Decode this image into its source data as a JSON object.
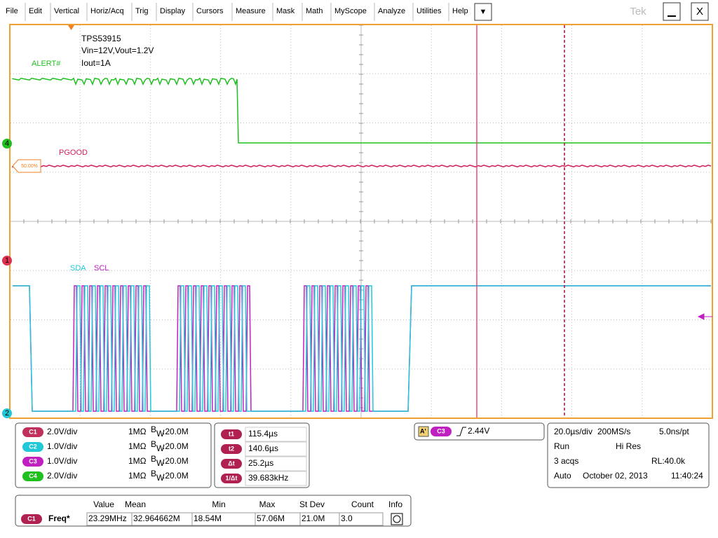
{
  "menu": {
    "items": [
      "File",
      "Edit",
      "Vertical",
      "Horiz/Acq",
      "Trig",
      "Display",
      "Cursors",
      "Measure",
      "Mask",
      "Math",
      "MyScope",
      "Analyze",
      "Utilities",
      "Help"
    ],
    "dropdown": "▼",
    "brand": "Tek",
    "close": "X"
  },
  "annotations": {
    "device": "TPS53915",
    "conditions": "Vin=12V,Vout=1.2V",
    "load": "Iout=1A",
    "alert": "ALERT#",
    "pgood": "PGOOD",
    "sda": "SDA",
    "scl": "SCL",
    "ref_level": "50.00%",
    "marker_4": "4",
    "marker_1": "1",
    "marker_2": "2"
  },
  "channels": [
    {
      "id": "C1",
      "scale": "2.0V/div",
      "impedance": "1MΩ",
      "bw_b": "B",
      "bw_w": "W",
      "bw_value": ":20.0M",
      "color": "#c0305a"
    },
    {
      "id": "C2",
      "scale": "1.0V/div",
      "impedance": "1MΩ",
      "bw_b": "B",
      "bw_w": "W",
      "bw_value": ":20.0M",
      "color": "#20c8d8"
    },
    {
      "id": "C3",
      "scale": "1.0V/div",
      "impedance": "1MΩ",
      "bw_b": "B",
      "bw_w": "W",
      "bw_value": ":20.0M",
      "color": "#c020c0"
    },
    {
      "id": "C4",
      "scale": "2.0V/div",
      "impedance": "1MΩ",
      "bw_b": "B",
      "bw_w": "W",
      "bw_value": ":20.0M",
      "color": "#20c020"
    }
  ],
  "cursors": [
    {
      "label": "t1",
      "value": "115.4µs"
    },
    {
      "label": "t2",
      "value": "140.6µs"
    },
    {
      "label": "Δt",
      "value": "25.2µs"
    },
    {
      "label": "1/Δt",
      "value": "39.683kHz"
    }
  ],
  "trigger": {
    "mode": "A'",
    "source": "C3",
    "level": "2.44V"
  },
  "horizontal": {
    "scale": "20.0µs/div",
    "rate": "200MS/s",
    "resolution": "5.0ns/pt",
    "state": "Run",
    "acq_mode": "Hi Res",
    "acqs": "3 acqs",
    "record": "RL:40.0k",
    "trigger_mode": "Auto",
    "date": "October 02, 2013",
    "time": "11:40:24"
  },
  "measurements": {
    "headers": [
      "Value",
      "Mean",
      "Min",
      "Max",
      "St Dev",
      "Count",
      "Info"
    ],
    "row": {
      "source": "C1",
      "name": "Freq*",
      "cells": [
        "23.29MHz",
        "32.964662M",
        "18.54M",
        "57.06M",
        "21.0M",
        "3.0"
      ]
    }
  }
}
